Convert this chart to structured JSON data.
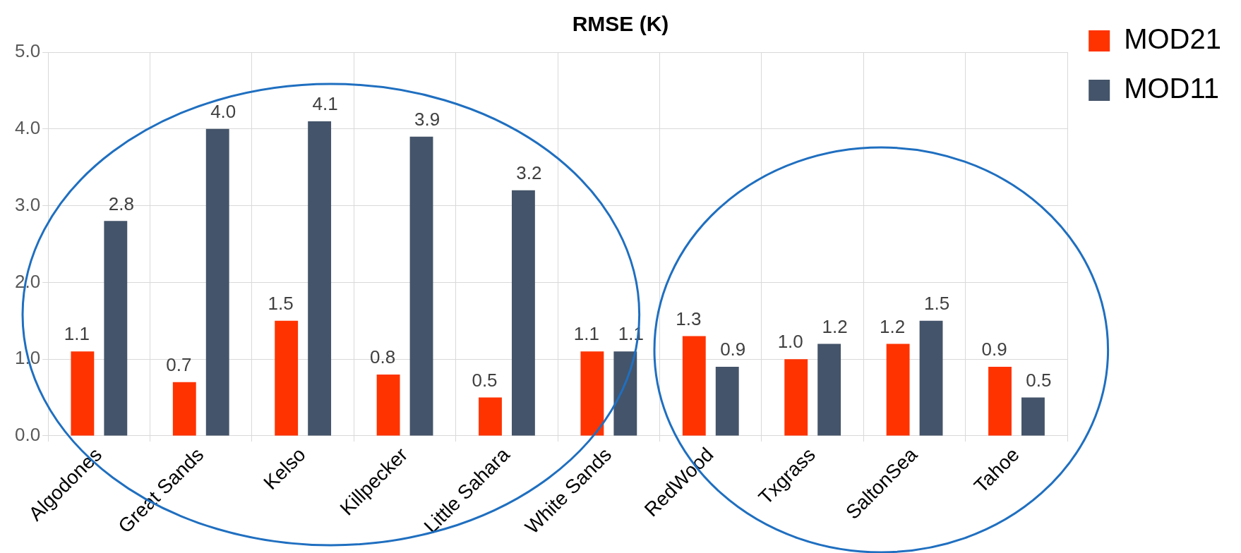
{
  "chart_data": {
    "type": "bar",
    "title": "RMSE (K)",
    "categories": [
      "Algodones",
      "Great Sands",
      "Kelso",
      "Killpecker",
      "Little Sahara",
      "White Sands",
      "RedWood",
      "Txgrass",
      "SaltonSea",
      "Tahoe"
    ],
    "series": [
      {
        "name": "MOD21",
        "color": "#ff3300",
        "values": [
          1.1,
          0.7,
          1.5,
          0.8,
          0.5,
          1.1,
          1.3,
          1.0,
          1.2,
          0.9
        ],
        "value_labels": [
          "1.1",
          "0.7",
          "1.5",
          "0.8",
          "0.5",
          "1.1",
          "1.3",
          "1.0",
          "1.2",
          "0.9"
        ]
      },
      {
        "name": "MOD11",
        "color": "#44546a",
        "values": [
          2.8,
          4.0,
          4.1,
          3.9,
          3.2,
          1.1,
          0.9,
          1.2,
          1.5,
          0.5
        ],
        "value_labels": [
          "2.8",
          "4.0",
          "4.1",
          "3.9",
          "3.2",
          "1.1",
          "0.9",
          "1.2",
          "1.5",
          "0.5"
        ]
      }
    ],
    "ylim": [
      0,
      5
    ],
    "yticks": [
      {
        "value": 0,
        "label": "0.0"
      },
      {
        "value": 1,
        "label": "1.0"
      },
      {
        "value": 2,
        "label": "2.0"
      },
      {
        "value": 3,
        "label": "3.0"
      },
      {
        "value": 4,
        "label": "4.0"
      },
      {
        "value": 5,
        "label": "5.0"
      }
    ],
    "grid": true,
    "legend": "top right"
  }
}
